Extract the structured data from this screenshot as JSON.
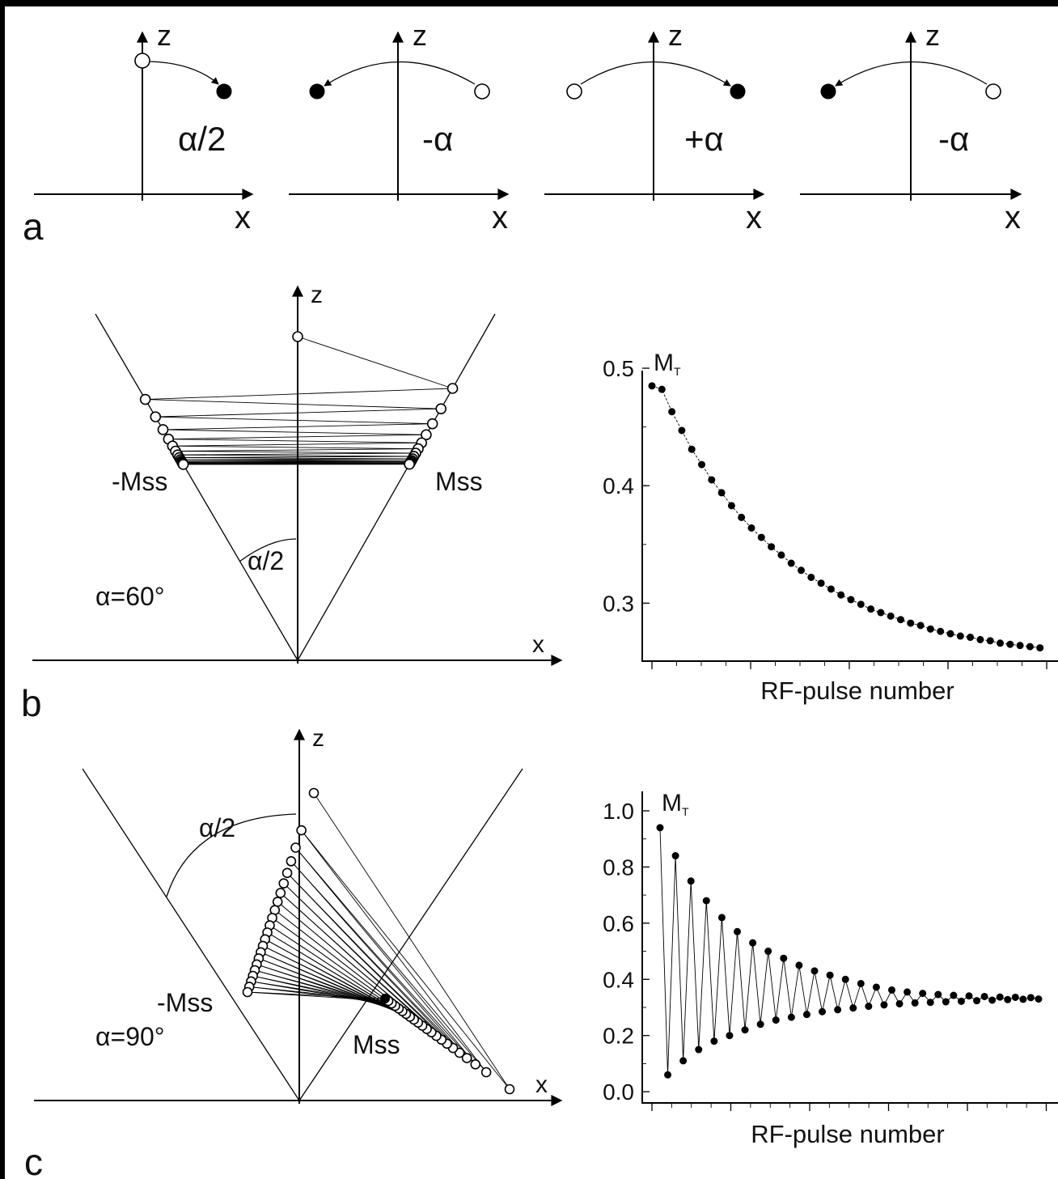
{
  "panel_a": {
    "label": "a",
    "axis_z": "z",
    "axis_x": "x",
    "pulses": [
      "α/2",
      "-α",
      "+α",
      "-α"
    ]
  },
  "panel_b": {
    "label": "b",
    "diagram": {
      "axis_z": "z",
      "axis_x": "x",
      "neg_label": "-Mss",
      "pos_label": "Mss",
      "angle_label": "α/2",
      "alpha_label": "α=60°"
    }
  },
  "panel_c": {
    "label": "c",
    "diagram": {
      "axis_z": "z",
      "axis_x": "x",
      "neg_label": "-Mss",
      "pos_label": "Mss",
      "angle_label": "α/2",
      "alpha_label": "α=90°"
    }
  },
  "chart_data": [
    {
      "type": "scatter",
      "ylabel_main": "M",
      "ylabel_sub": "T",
      "xlabel": "RF-pulse number",
      "ylim": [
        0.25,
        0.52
      ],
      "yticks": [
        "0.3",
        "0.4",
        "0.5"
      ],
      "y": [
        0.485,
        0.482,
        0.463,
        0.447,
        0.431,
        0.418,
        0.405,
        0.394,
        0.383,
        0.373,
        0.364,
        0.356,
        0.348,
        0.341,
        0.334,
        0.328,
        0.322,
        0.317,
        0.312,
        0.307,
        0.303,
        0.299,
        0.295,
        0.292,
        0.289,
        0.286,
        0.283,
        0.281,
        0.278,
        0.276,
        0.274,
        0.272,
        0.271,
        0.269,
        0.268,
        0.266,
        0.265,
        0.264,
        0.263,
        0.262
      ]
    },
    {
      "type": "line",
      "ylabel_main": "M",
      "ylabel_sub": "T",
      "xlabel": "RF-pulse number",
      "ylim": [
        -0.04,
        1.0
      ],
      "yticks": [
        "0.0",
        "0.2",
        "0.4",
        "0.6",
        "0.8",
        "1.0"
      ],
      "y": [
        0.94,
        0.06,
        0.84,
        0.11,
        0.75,
        0.15,
        0.68,
        0.18,
        0.62,
        0.2,
        0.57,
        0.22,
        0.53,
        0.24,
        0.5,
        0.255,
        0.475,
        0.265,
        0.45,
        0.275,
        0.43,
        0.285,
        0.415,
        0.292,
        0.4,
        0.298,
        0.385,
        0.304,
        0.372,
        0.309,
        0.362,
        0.313,
        0.355,
        0.316,
        0.35,
        0.318,
        0.346,
        0.32,
        0.343,
        0.322,
        0.341,
        0.324,
        0.339,
        0.326,
        0.337,
        0.328,
        0.336,
        0.329,
        0.335,
        0.33
      ]
    }
  ]
}
